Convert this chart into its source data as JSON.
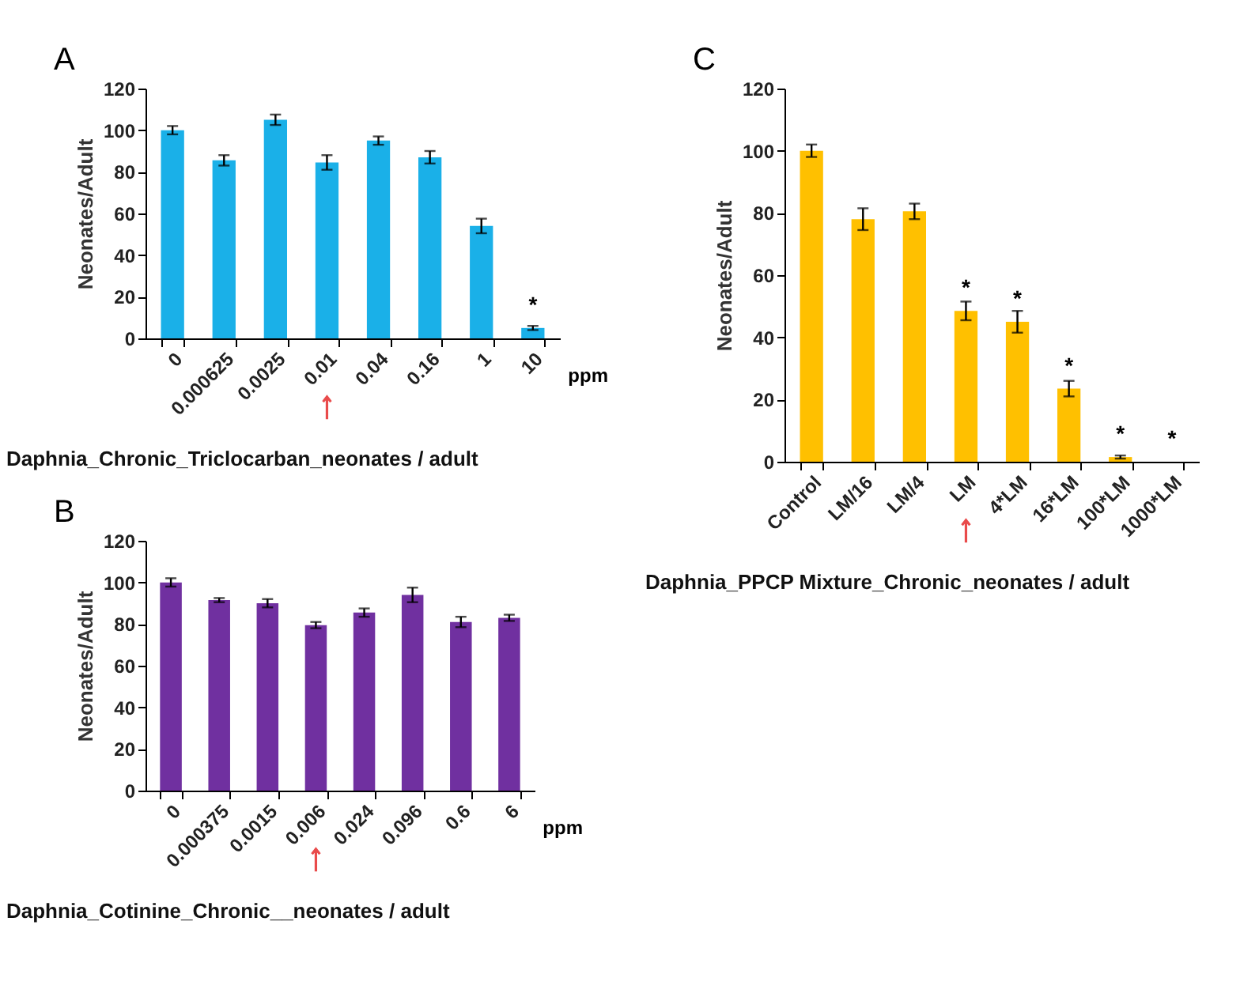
{
  "chart_data": [
    {
      "type": "bar",
      "title": "Daphnia_Chronic_Triclocarban_neonates / adult",
      "xlabel": "ppm",
      "ylabel": "Neonates/Adult",
      "categories": [
        "0",
        "0.000625",
        "0.0025",
        "0.01",
        "0.04",
        "0.16",
        "1",
        "10"
      ],
      "series": [
        {
          "color": "#1ab0e8",
          "values": [
            100,
            85.5,
            105,
            84.5,
            95,
            87,
            54,
            5
          ],
          "errors": [
            2,
            2.5,
            2.5,
            3.5,
            2,
            3,
            3.5,
            1
          ]
        }
      ],
      "ylim": [
        0,
        120
      ],
      "yticks": [
        0,
        20,
        40,
        60,
        80,
        100,
        120
      ],
      "annotations": [
        "A",
        {
          "text": "*",
          "x": "10",
          "y": 5
        }
      ]
    },
    {
      "type": "bar",
      "title": "Daphnia_Cotinine_Chronic__neonates / adult",
      "xlabel": "ppm",
      "ylabel": "Neonates/Adult",
      "categories": [
        "0",
        "0.000375",
        "0.0015",
        "0.006",
        "0.024",
        "0.096",
        "0.6",
        "6"
      ],
      "series": [
        {
          "color": "#7030a0",
          "values": [
            100,
            91.5,
            90,
            79.5,
            85.5,
            94,
            81,
            83
          ],
          "errors": [
            2,
            1,
            2,
            1.5,
            2,
            3.5,
            2.5,
            1.5
          ]
        }
      ],
      "ylim": [
        0,
        120
      ],
      "yticks": [
        0,
        20,
        40,
        60,
        80,
        100,
        120
      ],
      "annotations": [
        "B"
      ]
    },
    {
      "type": "bar",
      "title": "Daphnia_PPCP Mixture_Chronic_neonates / adult",
      "ylabel": "Neonates/Adult",
      "categories": [
        "Control",
        "LM/16",
        "LM/4",
        "LM",
        "4*LM",
        "16*LM",
        "100*LM",
        "1000*LM"
      ],
      "series": [
        {
          "color": "#ffc000",
          "values": [
            100,
            78,
            80.5,
            48.5,
            45,
            23.5,
            1.5,
            0
          ],
          "errors": [
            2,
            3.5,
            2.5,
            3,
            3.5,
            2.5,
            0.5,
            null
          ]
        }
      ],
      "ylim": [
        0,
        120
      ],
      "yticks": [
        0,
        20,
        40,
        60,
        80,
        100,
        120
      ],
      "annotations": [
        "C",
        {
          "text": "*",
          "x": "LM",
          "y": 48.5
        },
        {
          "text": "*",
          "x": "4*LM",
          "y": 45
        },
        {
          "text": "*",
          "x": "16*LM",
          "y": 23.5
        },
        {
          "text": "*",
          "x": "100*LM",
          "y": 1.5
        },
        {
          "text": "*",
          "x": "1000*LM",
          "y": 0
        }
      ]
    }
  ]
}
